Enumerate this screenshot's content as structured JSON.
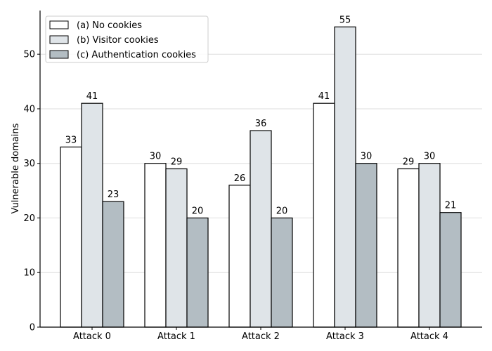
{
  "chart_data": {
    "type": "bar",
    "title": "",
    "xlabel": "",
    "ylabel": "Vulnerable domains",
    "categories": [
      "Attack 0",
      "Attack 1",
      "Attack 2",
      "Attack 3",
      "Attack 4"
    ],
    "series": [
      {
        "name": "(a) No cookies",
        "values": [
          33,
          30,
          26,
          41,
          29
        ],
        "color": "#ffffff"
      },
      {
        "name": "(b) Visitor cookies",
        "values": [
          41,
          29,
          36,
          55,
          30
        ],
        "color": "#dfe4e8"
      },
      {
        "name": "(c) Authentication cookies",
        "values": [
          23,
          20,
          20,
          30,
          21
        ],
        "color": "#b3bdc3"
      }
    ],
    "ylim": [
      0,
      58
    ],
    "yticks": [
      0,
      10,
      20,
      30,
      40,
      50
    ],
    "grid": "horizontal",
    "legend_position": "top-left",
    "bar_edge_color": "#000000",
    "grid_color": "#dddddd"
  }
}
